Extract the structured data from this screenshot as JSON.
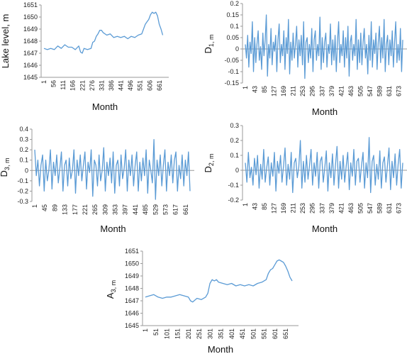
{
  "chart_data": [
    {
      "id": "lake",
      "type": "line",
      "xlabel": "Month",
      "ylabel": "Lake level, m",
      "ylim": [
        1645,
        1651
      ],
      "yticks": [
        "1645",
        "1646",
        "1647",
        "1648",
        "1649",
        "1650",
        "1651"
      ],
      "xticks": [
        "1",
        "56",
        "111",
        "166",
        "221",
        "276",
        "331",
        "386",
        "441",
        "496",
        "551",
        "606",
        "661"
      ],
      "color": "#5b9bd5",
      "series": [
        {
          "x": [
            1,
            20,
            40,
            60,
            80,
            100,
            120,
            140,
            160,
            180,
            200,
            210,
            220,
            230,
            250,
            270,
            280,
            290,
            300,
            310,
            320,
            330,
            340,
            360,
            380,
            400,
            420,
            440,
            460,
            480,
            500,
            520,
            540,
            560,
            570,
            580,
            590,
            600,
            610,
            620,
            630,
            640,
            650,
            660,
            670,
            680
          ],
          "values": [
            1647.4,
            1647.3,
            1647.4,
            1647.3,
            1647.6,
            1647.4,
            1647.7,
            1647.5,
            1647.5,
            1647.3,
            1647.6,
            1647.1,
            1647.0,
            1647.4,
            1647.3,
            1647.4,
            1647.9,
            1648.0,
            1648.4,
            1648.6,
            1648.9,
            1648.9,
            1648.7,
            1648.5,
            1648.6,
            1648.3,
            1648.4,
            1648.3,
            1648.4,
            1648.2,
            1648.4,
            1648.3,
            1648.5,
            1648.6,
            1649.0,
            1649.4,
            1649.6,
            1649.8,
            1650.2,
            1650.4,
            1650.3,
            1650.4,
            1650.1,
            1649.4,
            1649.0,
            1648.5
          ]
        }
      ]
    },
    {
      "id": "d1",
      "type": "line",
      "xlabel": "Month",
      "ylabel": "D",
      "ylabel_sub": "1, m",
      "ylim": [
        -0.15,
        0.2
      ],
      "yticks": [
        "-0.15",
        "-0.1",
        "-0.05",
        "0",
        "0.05",
        "0.1",
        "0.15",
        "0.2"
      ],
      "xticks": [
        "1",
        "43",
        "85",
        "127",
        "169",
        "211",
        "253",
        "295",
        "337",
        "379",
        "421",
        "463",
        "505",
        "547",
        "589",
        "631",
        "673"
      ],
      "color": "#5b9bd5",
      "x_end": 690,
      "series": [
        {
          "values": [
            0.02,
            -0.04,
            0.06,
            -0.08,
            0.03,
            -0.02,
            0.12,
            -0.1,
            0.05,
            -0.06,
            0.02,
            0.08,
            -0.05,
            0.01,
            -0.09,
            0.07,
            -0.03,
            0.04,
            0.15,
            -0.12,
            0.02,
            -0.04,
            0.09,
            -0.07,
            0.03,
            -0.01,
            0.06,
            -0.1,
            0.04,
            0.11,
            -0.06,
            0.02,
            -0.03,
            0.08,
            -0.09,
            0.05,
            -0.02,
            0.13,
            -0.11,
            0.03,
            -0.05,
            0.07,
            -0.04,
            0.02,
            0.1,
            -0.08,
            0.04,
            -0.03,
            0.06,
            -0.07,
            0.12,
            -0.13,
            0.03,
            0.05,
            -0.06,
            0.02,
            -0.04,
            0.09,
            -0.1,
            0.04,
            0.08,
            -0.05,
            0.02,
            -0.03,
            0.14,
            -0.09,
            0.05,
            -0.06,
            0.03,
            0.07,
            -0.08,
            0.02,
            -0.02,
            0.11,
            -0.07,
            0.04,
            -0.05,
            0.06,
            -0.1,
            0.03,
            0.12,
            -0.06,
            0.02,
            -0.03,
            0.08,
            -0.08,
            0.05,
            -0.04,
            0.1,
            -0.12,
            0.03,
            0.06,
            -0.05,
            0.02,
            -0.03,
            0.13,
            -0.09,
            0.04,
            -0.06,
            0.07,
            -0.07,
            0.03,
            0.09,
            -0.04,
            0.02,
            -0.11,
            0.06,
            -0.05,
            0.12,
            -0.08,
            0.04,
            -0.02,
            0.07,
            -0.09,
            0.03,
            0.1,
            -0.06,
            0.05,
            -0.04,
            0.13,
            -0.1,
            0.02,
            0.06,
            -0.07,
            0.04,
            -0.03,
            0.08,
            -0.08,
            0.03,
            0.12,
            -0.06,
            0.02,
            -0.05,
            0.09,
            -0.1,
            0.04
          ]
        }
      ]
    },
    {
      "id": "d3",
      "type": "line",
      "xlabel": "Month",
      "ylabel": "D",
      "ylabel_sub": "3, m",
      "ylim": [
        -0.3,
        0.4
      ],
      "yticks": [
        "-0.3",
        "-0.2",
        "-0.1",
        "0",
        "0.1",
        "0.2",
        "0.3",
        "0.4"
      ],
      "xticks": [
        "1",
        "45",
        "89",
        "133",
        "177",
        "221",
        "265",
        "309",
        "353",
        "397",
        "441",
        "485",
        "529",
        "573",
        "617",
        "661"
      ],
      "color": "#5b9bd5",
      "x_end": 680,
      "series": [
        {
          "values": [
            0.2,
            -0.05,
            0.1,
            -0.15,
            0.05,
            0.15,
            -0.2,
            0.1,
            -0.1,
            0.0,
            0.2,
            -0.18,
            0.08,
            -0.05,
            0.15,
            -0.12,
            0.02,
            0.18,
            -0.2,
            0.05,
            0.1,
            -0.15,
            0.12,
            -0.08,
            0.0,
            0.2,
            -0.22,
            0.1,
            -0.05,
            0.15,
            -0.1,
            0.05,
            0.18,
            -0.18,
            0.08,
            -0.02,
            0.2,
            -0.25,
            0.1,
            0.05,
            -0.15,
            0.15,
            -0.1,
            0.0,
            0.22,
            -0.2,
            0.08,
            -0.05,
            0.12,
            -0.12,
            0.18,
            -0.22,
            0.05,
            0.1,
            -0.15,
            0.15,
            -0.08,
            0.02,
            0.2,
            -0.2,
            0.1,
            -0.05,
            0.15,
            -0.15,
            0.05,
            0.18,
            -0.2,
            0.08,
            -0.1,
            0.12,
            -0.05,
            0.2,
            -0.22,
            0.1,
            0.0,
            -0.12,
            0.3,
            -0.28,
            0.1,
            -0.05,
            0.15,
            -0.15,
            0.05,
            0.2,
            -0.2,
            0.08,
            -0.05,
            0.15,
            -0.12,
            0.1,
            0.18,
            -0.2,
            0.05,
            -0.08,
            0.15,
            -0.15,
            0.1,
            -0.05,
            0.18,
            -0.2
          ]
        }
      ]
    },
    {
      "id": "d2",
      "type": "line",
      "xlabel": "Month",
      "ylabel": "D",
      "ylabel_sub": "2, m",
      "ylim": [
        -0.2,
        0.3
      ],
      "yticks": [
        "-0.2",
        "-0.1",
        "0",
        "0.1",
        "0.2",
        "0.3"
      ],
      "xticks": [
        "1",
        "43",
        "85",
        "127",
        "169",
        "211",
        "253",
        "295",
        "337",
        "379",
        "421",
        "463",
        "505",
        "547",
        "589",
        "631",
        "673"
      ],
      "color": "#5b9bd5",
      "x_end": 690,
      "series": [
        {
          "values": [
            0.05,
            -0.08,
            0.12,
            -0.05,
            0.02,
            -0.1,
            0.08,
            -0.03,
            0.1,
            -0.12,
            0.04,
            -0.06,
            0.14,
            -0.08,
            0.02,
            0.09,
            -0.1,
            0.05,
            -0.04,
            0.12,
            -0.14,
            0.06,
            -0.02,
            0.1,
            -0.08,
            0.03,
            0.15,
            -0.1,
            0.04,
            -0.06,
            0.12,
            -0.15,
            0.05,
            0.08,
            -0.05,
            0.02,
            0.2,
            -0.12,
            0.06,
            -0.08,
            0.1,
            -0.06,
            0.03,
            0.14,
            -0.1,
            0.05,
            -0.04,
            0.12,
            -0.12,
            0.06,
            0.09,
            -0.08,
            0.02,
            0.13,
            -0.14,
            0.05,
            -0.05,
            0.11,
            -0.1,
            0.04,
            0.16,
            -0.12,
            0.06,
            -0.06,
            0.1,
            -0.08,
            0.03,
            0.12,
            -0.13,
            0.05,
            -0.04,
            0.14,
            -0.1,
            0.06,
            0.08,
            -0.08,
            0.03,
            0.12,
            -0.12,
            0.05,
            -0.05,
            0.22,
            -0.15,
            0.06,
            0.1,
            -0.1,
            0.04,
            -0.06,
            0.13,
            -0.12,
            0.05,
            0.09,
            -0.08,
            0.03,
            0.15,
            -0.13,
            0.06,
            -0.05,
            0.11,
            -0.1,
            0.04,
            0.14,
            -0.12,
            0.05
          ]
        }
      ]
    },
    {
      "id": "a3",
      "type": "line",
      "xlabel": "Month",
      "ylabel": "A",
      "ylabel_sub": "3, m",
      "ylim": [
        1645,
        1651
      ],
      "yticks": [
        "1645",
        "1646",
        "1647",
        "1648",
        "1649",
        "1650",
        "1651"
      ],
      "xticks": [
        "1",
        "51",
        "101",
        "151",
        "201",
        "251",
        "301",
        "351",
        "401",
        "451",
        "501",
        "551",
        "601",
        "651"
      ],
      "color": "#5b9bd5",
      "series": [
        {
          "x": [
            1,
            20,
            40,
            60,
            80,
            100,
            120,
            140,
            160,
            180,
            200,
            210,
            220,
            240,
            260,
            280,
            290,
            300,
            310,
            320,
            330,
            340,
            360,
            380,
            400,
            420,
            440,
            460,
            480,
            500,
            520,
            540,
            560,
            570,
            580,
            590,
            600,
            610,
            620,
            630,
            640,
            650,
            660,
            670,
            680
          ],
          "values": [
            1647.3,
            1647.4,
            1647.5,
            1647.3,
            1647.2,
            1647.3,
            1647.3,
            1647.4,
            1647.5,
            1647.4,
            1647.3,
            1647.0,
            1646.9,
            1647.2,
            1647.1,
            1647.3,
            1647.6,
            1648.4,
            1648.7,
            1648.6,
            1648.7,
            1648.5,
            1648.4,
            1648.3,
            1648.4,
            1648.2,
            1648.3,
            1648.2,
            1648.3,
            1648.2,
            1648.4,
            1648.5,
            1648.7,
            1649.2,
            1649.5,
            1649.6,
            1649.9,
            1650.2,
            1650.3,
            1650.2,
            1650.1,
            1649.8,
            1649.4,
            1648.9,
            1648.6
          ]
        }
      ]
    }
  ]
}
